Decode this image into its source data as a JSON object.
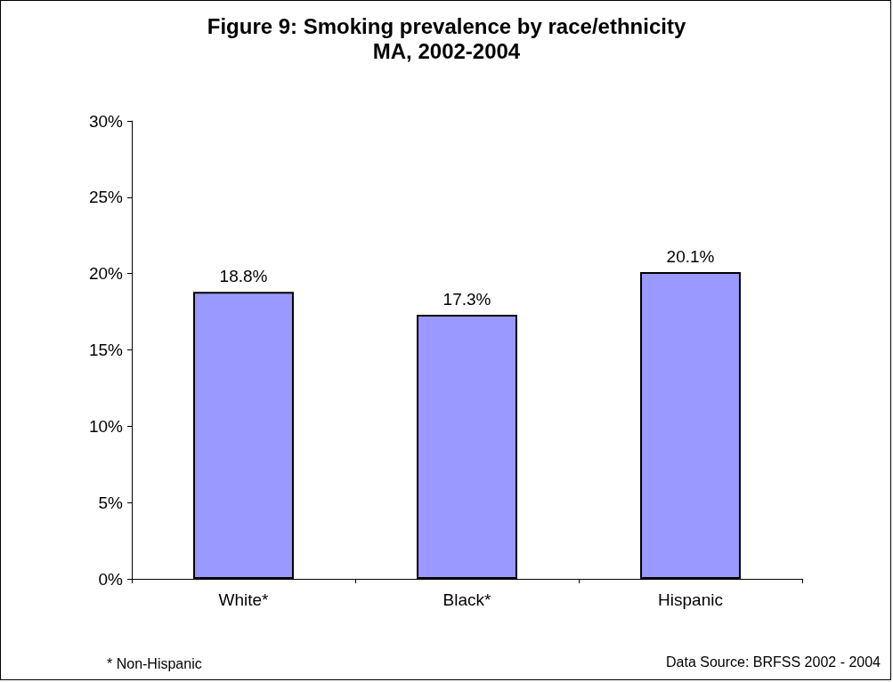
{
  "chart_data": {
    "type": "bar",
    "title": "Figure 9: Smoking prevalence by race/ethnicity",
    "subtitle": "MA, 2002-2004",
    "categories": [
      "White*",
      "Black*",
      "Hispanic"
    ],
    "values": [
      18.8,
      17.3,
      20.1
    ],
    "value_labels": [
      "18.8%",
      "17.3%",
      "20.1%"
    ],
    "color": "#9999ff",
    "ylim": [
      0,
      30
    ],
    "yticks": [
      {
        "value": 0,
        "label": "0%"
      },
      {
        "value": 5,
        "label": "5%"
      },
      {
        "value": 10,
        "label": "10%"
      },
      {
        "value": 15,
        "label": "15%"
      },
      {
        "value": 20,
        "label": "20%"
      },
      {
        "value": 25,
        "label": "25%"
      },
      {
        "value": 30,
        "label": "30%"
      }
    ],
    "grid": false,
    "annotations": [
      "* Non-Hispanic",
      "Data Source: BRFSS 2002 - 2004"
    ]
  }
}
